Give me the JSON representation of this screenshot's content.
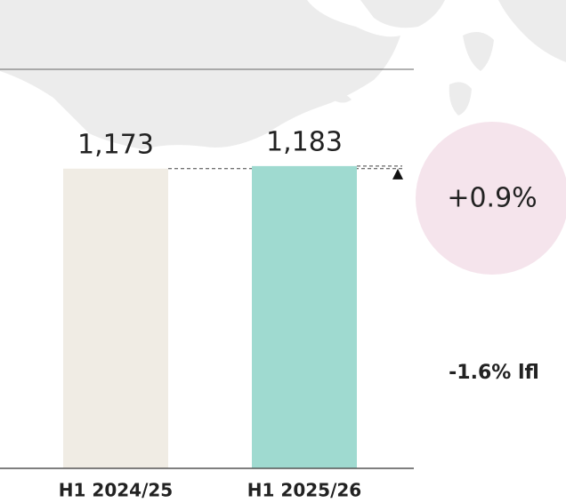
{
  "chart_data": {
    "type": "bar",
    "categories": [
      "H1 2024/25",
      "H1 2025/26"
    ],
    "values": [
      1173,
      1183
    ],
    "value_labels": [
      "1,173",
      "1,183"
    ],
    "colors": [
      "#f0ece4",
      "#9fdad0"
    ],
    "ylim": [
      0,
      1200
    ],
    "annotations": [
      "+0.9%",
      "-1.6% lfl"
    ]
  }
}
